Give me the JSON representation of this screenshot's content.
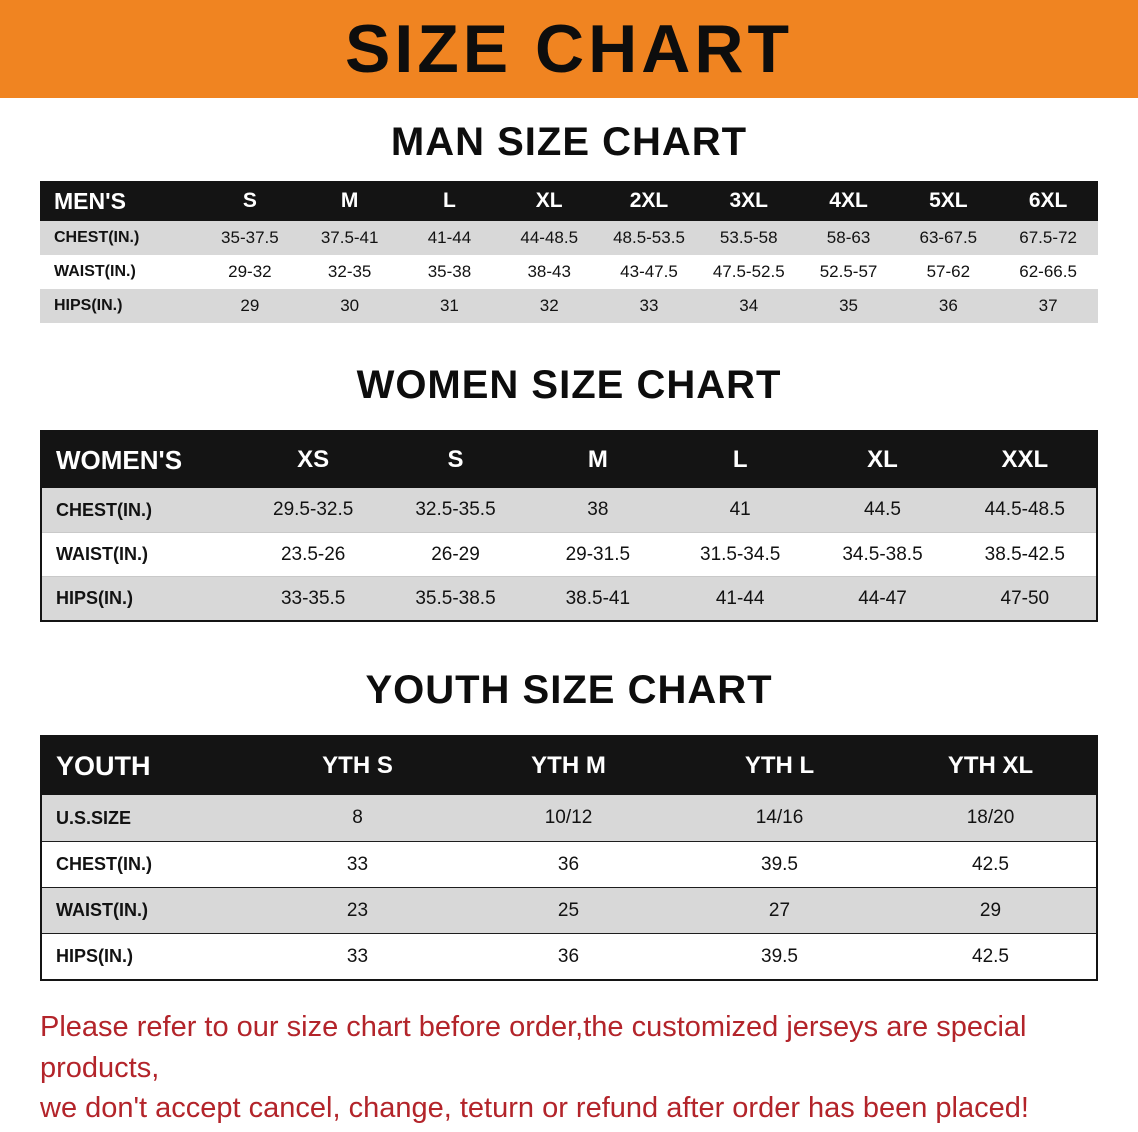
{
  "banner": {
    "title": "SIZE CHART",
    "bg_color": "#f08421"
  },
  "men": {
    "heading": "MAN SIZE CHART",
    "header": [
      "MEN'S",
      "S",
      "M",
      "L",
      "XL",
      "2XL",
      "3XL",
      "4XL",
      "5XL",
      "6XL"
    ],
    "rows": [
      {
        "label": "CHEST(IN.)",
        "values": [
          "35-37.5",
          "37.5-41",
          "41-44",
          "44-48.5",
          "48.5-53.5",
          "53.5-58",
          "58-63",
          "63-67.5",
          "67.5-72"
        ]
      },
      {
        "label": "WAIST(IN.)",
        "values": [
          "29-32",
          "32-35",
          "35-38",
          "38-43",
          "43-47.5",
          "47.5-52.5",
          "52.5-57",
          "57-62",
          "62-66.5"
        ]
      },
      {
        "label": "HIPS(IN.)",
        "values": [
          "29",
          "30",
          "31",
          "32",
          "33",
          "34",
          "35",
          "36",
          "37"
        ]
      }
    ]
  },
  "women": {
    "heading": "WOMEN SIZE CHART",
    "header": [
      "WOMEN'S",
      "XS",
      "S",
      "M",
      "L",
      "XL",
      "XXL"
    ],
    "rows": [
      {
        "label": "CHEST(IN.)",
        "values": [
          "29.5-32.5",
          "32.5-35.5",
          "38",
          "41",
          "44.5",
          "44.5-48.5"
        ]
      },
      {
        "label": "WAIST(IN.)",
        "values": [
          "23.5-26",
          "26-29",
          "29-31.5",
          "31.5-34.5",
          "34.5-38.5",
          "38.5-42.5"
        ]
      },
      {
        "label": "HIPS(IN.)",
        "values": [
          "33-35.5",
          "35.5-38.5",
          "38.5-41",
          "41-44",
          "44-47",
          "47-50"
        ]
      }
    ]
  },
  "youth": {
    "heading": "YOUTH SIZE CHART",
    "header": [
      "YOUTH",
      "YTH S",
      "YTH M",
      "YTH L",
      "YTH XL"
    ],
    "rows": [
      {
        "label": "U.S.SIZE",
        "values": [
          "8",
          "10/12",
          "14/16",
          "18/20"
        ]
      },
      {
        "label": "CHEST(IN.)",
        "values": [
          "33",
          "36",
          "39.5",
          "42.5"
        ]
      },
      {
        "label": "WAIST(IN.)",
        "values": [
          "23",
          "25",
          "27",
          "29"
        ]
      },
      {
        "label": "HIPS(IN.)",
        "values": [
          "33",
          "36",
          "39.5",
          "42.5"
        ]
      }
    ]
  },
  "notice": {
    "line1": "Please refer to our size chart before order,the customized jerseys are special products,",
    "line2": "we don't accept cancel, change, teturn or refund after order has been placed!"
  }
}
